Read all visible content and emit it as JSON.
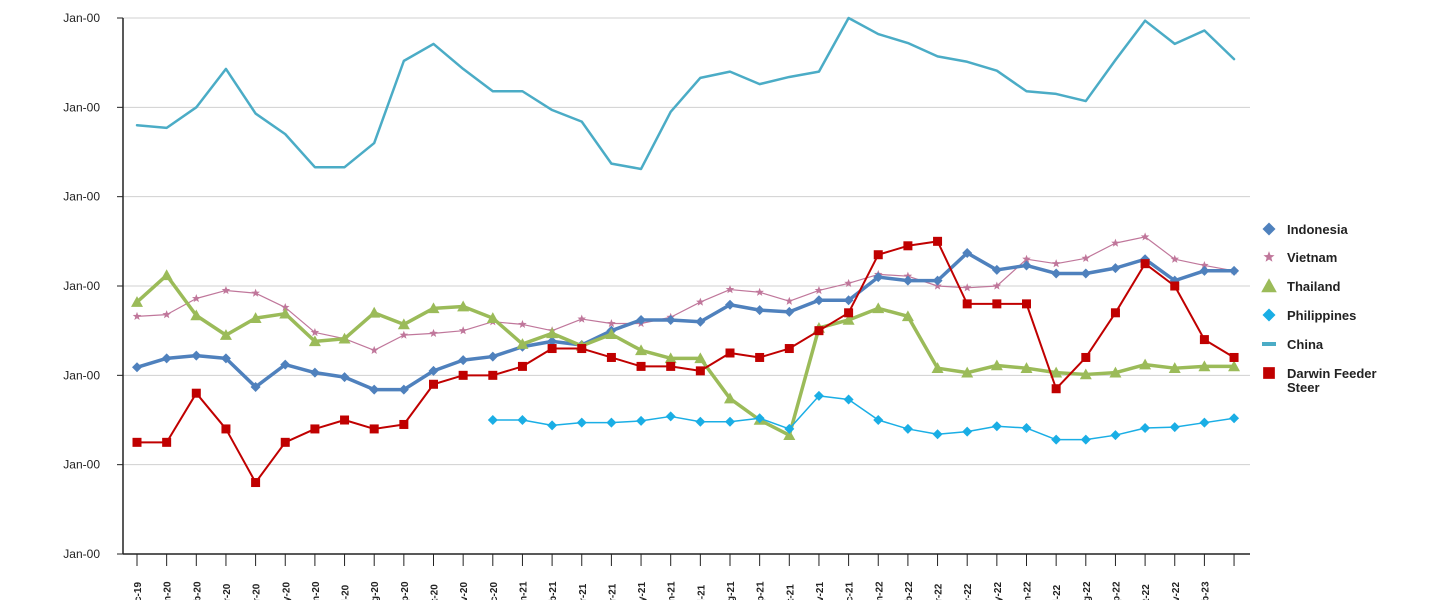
{
  "chart_data": {
    "type": "line",
    "title": "",
    "xlabel": "",
    "ylabel": "",
    "ylim": [
      0,
      6
    ],
    "y_ticks": [
      0,
      1,
      2,
      3,
      4,
      5,
      6
    ],
    "y_tick_labels": [
      "Jan-00",
      "Jan-00",
      "Jan-00",
      "Jan-00",
      "Jan-00",
      "Jan-00",
      "Jan-00"
    ],
    "grid": true,
    "legend_position": "right",
    "x": [
      "c-19",
      "n-20",
      "b-20",
      "r-20",
      "r-20",
      "y-20",
      "n-20",
      "l-20",
      "g-20",
      "p-20",
      "t-20",
      "v-20",
      "c-20",
      "n-21",
      "b-21",
      "r-21",
      "r-21",
      "y-21",
      "n-21",
      "l-21",
      "g-21",
      "p-21",
      "t-21",
      "v-21",
      "c-21",
      "n-22",
      "b-22",
      "r-22",
      "r-22",
      "y-22",
      "n-22",
      "l-22",
      "g-22",
      "p-22",
      "t-22",
      "v-22",
      "b-23",
      ""
    ],
    "series": [
      {
        "name": "Indonesia",
        "color": "#4f81bd",
        "marker": "diamond",
        "values": [
          2.09,
          2.19,
          2.22,
          2.19,
          1.87,
          2.12,
          2.03,
          1.98,
          1.84,
          1.84,
          2.05,
          2.17,
          2.21,
          2.32,
          2.38,
          2.34,
          2.5,
          2.62,
          2.62,
          2.6,
          2.79,
          2.73,
          2.71,
          2.84,
          2.84,
          3.1,
          3.06,
          3.06,
          3.37,
          3.18,
          3.23,
          3.14,
          3.14,
          3.2,
          3.3,
          3.06,
          3.17,
          3.17
        ]
      },
      {
        "name": "Vietnam",
        "color": "#c0779b",
        "marker": "star",
        "values": [
          2.66,
          2.68,
          2.86,
          2.95,
          2.92,
          2.76,
          2.48,
          2.41,
          2.28,
          2.45,
          2.47,
          2.5,
          2.6,
          2.57,
          2.5,
          2.63,
          2.58,
          2.58,
          2.65,
          2.82,
          2.96,
          2.93,
          2.83,
          2.95,
          3.03,
          3.13,
          3.11,
          3.0,
          2.98,
          3.0,
          3.3,
          3.25,
          3.31,
          3.48,
          3.55,
          3.3,
          3.23,
          3.17
        ]
      },
      {
        "name": "Thailand",
        "color": "#9bbb59",
        "marker": "triangle",
        "values": [
          2.82,
          3.12,
          2.67,
          2.45,
          2.64,
          2.69,
          2.38,
          2.41,
          2.7,
          2.57,
          2.75,
          2.77,
          2.64,
          2.35,
          2.47,
          2.33,
          2.46,
          2.28,
          2.19,
          2.19,
          1.74,
          1.5,
          1.33,
          2.53,
          2.62,
          2.75,
          2.66,
          2.08,
          2.03,
          2.11,
          2.08,
          2.03,
          2.01,
          2.03,
          2.12,
          2.08,
          2.1,
          2.1
        ]
      },
      {
        "name": "Philippines",
        "color": "#1aaee5",
        "marker": "diamond",
        "values": [
          null,
          null,
          null,
          null,
          null,
          null,
          null,
          null,
          null,
          null,
          null,
          null,
          1.5,
          1.5,
          1.44,
          1.47,
          1.47,
          1.49,
          1.54,
          1.48,
          1.48,
          1.52,
          1.4,
          1.77,
          1.73,
          1.5,
          1.4,
          1.34,
          1.37,
          1.43,
          1.41,
          1.28,
          1.28,
          1.33,
          1.41,
          1.42,
          1.47,
          1.52
        ]
      },
      {
        "name": "China",
        "color": "#4bacc6",
        "marker": "none",
        "values": [
          4.8,
          4.77,
          5.0,
          5.43,
          4.93,
          4.7,
          4.33,
          4.33,
          4.6,
          5.52,
          5.71,
          5.43,
          5.18,
          5.18,
          4.97,
          4.84,
          4.37,
          4.31,
          4.95,
          5.33,
          5.4,
          5.26,
          5.34,
          5.4,
          6.0,
          5.82,
          5.72,
          5.57,
          5.51,
          5.41,
          5.18,
          5.15,
          5.07,
          5.53,
          5.97,
          5.71,
          5.86,
          5.54
        ]
      },
      {
        "name": "Darwin Feeder Steer",
        "label_lines": [
          "Darwin Feeder",
          "Steer"
        ],
        "color": "#c00000",
        "marker": "square",
        "values": [
          1.25,
          1.25,
          1.8,
          1.4,
          0.8,
          1.25,
          1.4,
          1.5,
          1.4,
          1.45,
          1.9,
          2.0,
          2.0,
          2.1,
          2.3,
          2.3,
          2.2,
          2.1,
          2.1,
          2.05,
          2.25,
          2.2,
          2.3,
          2.5,
          2.7,
          3.35,
          3.45,
          3.5,
          2.8,
          2.8,
          2.8,
          1.85,
          2.2,
          2.7,
          3.25,
          3.0,
          2.4,
          2.2
        ]
      }
    ]
  }
}
